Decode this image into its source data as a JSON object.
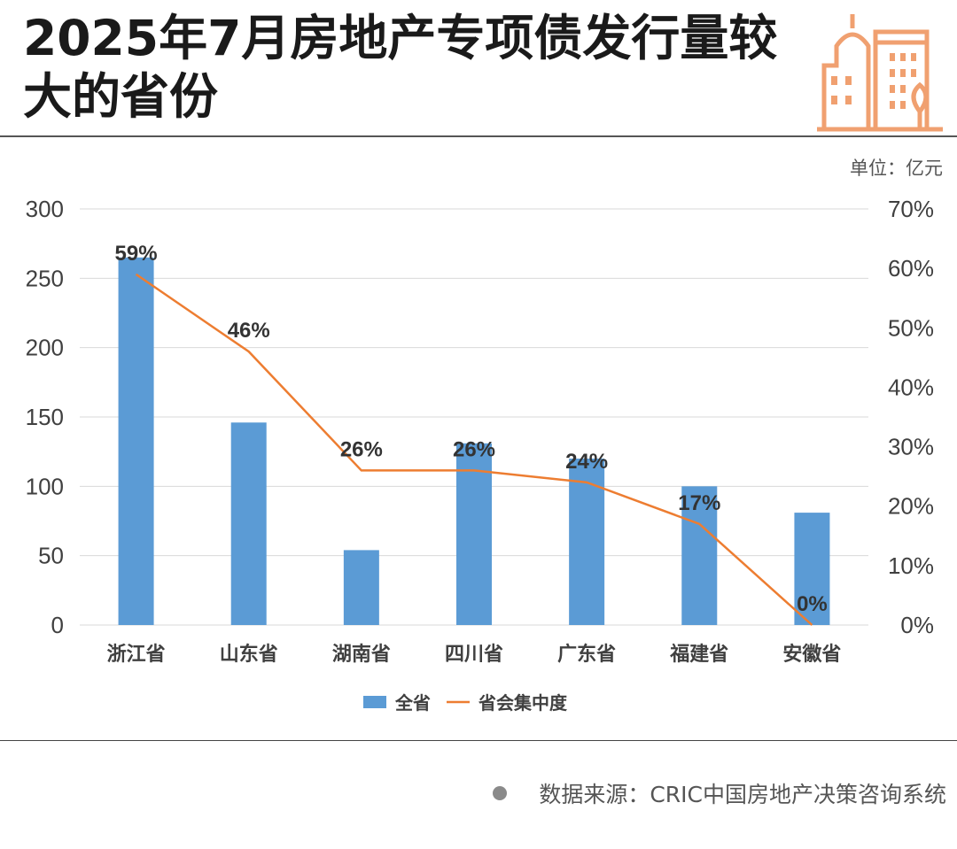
{
  "title": "2025年7月房地产专项债发行量较大的省份",
  "unit_label": "单位：亿元",
  "source_text": "数据来源：CRIC中国房地产决策咨询系统",
  "colors": {
    "bar": "#5b9bd5",
    "line": "#ed7d31",
    "accent": "#f0a070"
  },
  "chart_data": {
    "type": "bar",
    "categories": [
      "浙江省",
      "山东省",
      "湖南省",
      "四川省",
      "广东省",
      "福建省",
      "安徽省"
    ],
    "series": [
      {
        "name": "全省",
        "type": "bar",
        "axis": "left",
        "values": [
          265,
          146,
          54,
          131,
          120,
          100,
          81
        ]
      },
      {
        "name": "省会集中度",
        "type": "line",
        "axis": "right",
        "values": [
          59,
          46,
          26,
          26,
          24,
          17,
          0
        ],
        "labels": [
          "59%",
          "46%",
          "26%",
          "26%",
          "24%",
          "17%",
          "0%"
        ]
      }
    ],
    "left_axis": {
      "min": 0,
      "max": 300,
      "ticks": [
        "0",
        "50",
        "100",
        "150",
        "200",
        "250",
        "300"
      ]
    },
    "right_axis": {
      "min": 0,
      "max": 70,
      "ticks": [
        "0%",
        "10%",
        "20%",
        "30%",
        "40%",
        "50%",
        "60%",
        "70%"
      ]
    },
    "legend": [
      "全省",
      "省会集中度"
    ],
    "grid": true
  }
}
